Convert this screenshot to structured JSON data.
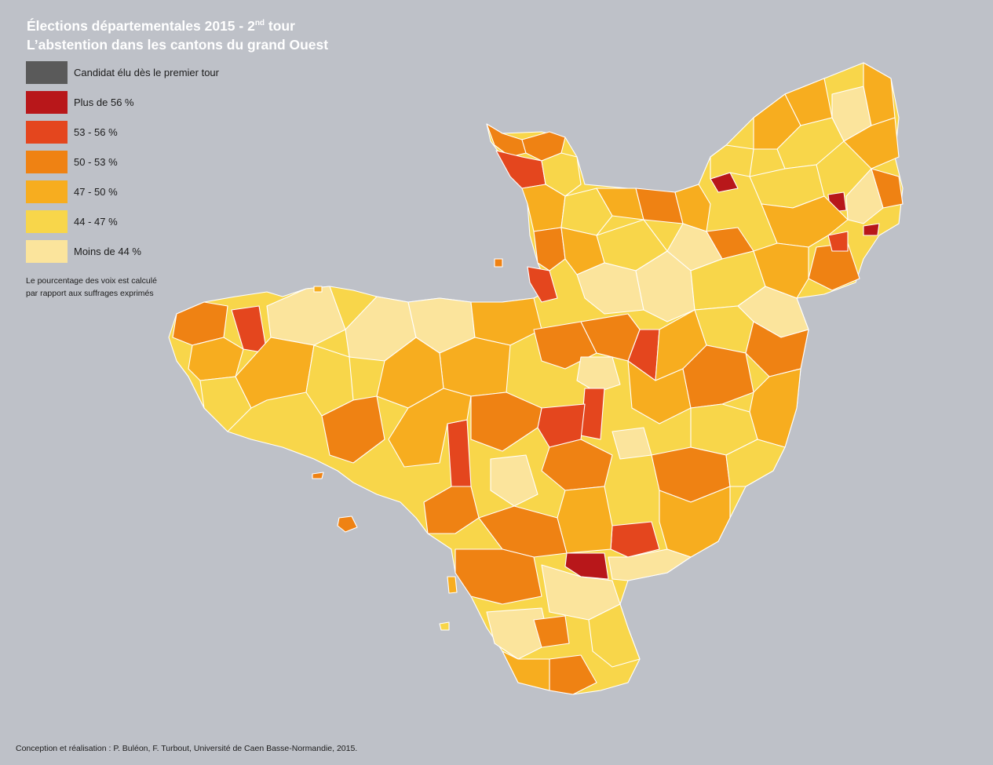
{
  "title": {
    "line1_prefix": "Élections départementales 2015 - 2",
    "line1_sup": "nd",
    "line1_suffix": " tour",
    "line2": "L’abstention dans les cantons du grand Ouest"
  },
  "legend": [
    {
      "label": "Candidat élu dès le premier tour",
      "color": "#5a5a5a"
    },
    {
      "label": "Plus de 56 %",
      "color": "#b8171a"
    },
    {
      "label": "53 - 56 %",
      "color": "#e4461e"
    },
    {
      "label": "50 - 53 %",
      "color": "#ef8213"
    },
    {
      "label": "47 - 50 %",
      "color": "#f7ad1f"
    },
    {
      "label": "44 - 47 %",
      "color": "#f8d64a"
    },
    {
      "label": "Moins de 44 %",
      "color": "#fbe49c"
    }
  ],
  "note": {
    "line1": "Le pourcentage des voix est calculé",
    "line2": "par rapport aux suffrages exprimés"
  },
  "credits": "Conception et réalisation : P. Buléon, F. Turbout, Université de Caen Basse-Normandie, 2015.",
  "colors": {
    "background": "#bec1c8",
    "border": "#ffffff"
  }
}
